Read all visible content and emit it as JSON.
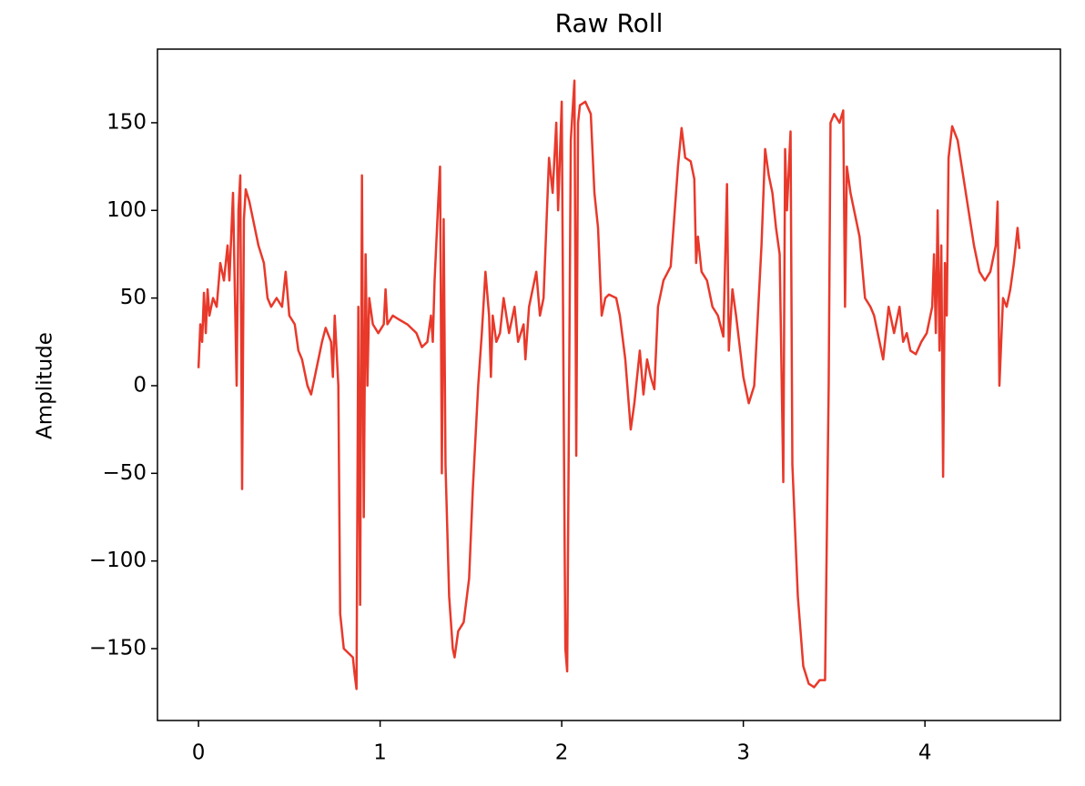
{
  "chart_data": {
    "type": "line",
    "title": "Raw Roll",
    "y_label": "Amplitude",
    "color": "#e8392b",
    "x": [
      0.0,
      0.01,
      0.02,
      0.03,
      0.04,
      0.05,
      0.06,
      0.08,
      0.1,
      0.12,
      0.14,
      0.16,
      0.17,
      0.19,
      0.2,
      0.21,
      0.22,
      0.23,
      0.24,
      0.25,
      0.26,
      0.28,
      0.3,
      0.33,
      0.36,
      0.38,
      0.4,
      0.43,
      0.46,
      0.48,
      0.5,
      0.53,
      0.55,
      0.57,
      0.6,
      0.62,
      0.64,
      0.66,
      0.68,
      0.7,
      0.73,
      0.74,
      0.75,
      0.77,
      0.78,
      0.8,
      0.83,
      0.85,
      0.86,
      0.87,
      0.88,
      0.89,
      0.9,
      0.91,
      0.92,
      0.93,
      0.94,
      0.96,
      0.99,
      1.02,
      1.03,
      1.04,
      1.07,
      1.1,
      1.15,
      1.2,
      1.23,
      1.26,
      1.28,
      1.29,
      1.3,
      1.32,
      1.33,
      1.34,
      1.35,
      1.36,
      1.38,
      1.4,
      1.41,
      1.43,
      1.46,
      1.49,
      1.51,
      1.54,
      1.56,
      1.58,
      1.6,
      1.61,
      1.62,
      1.64,
      1.66,
      1.68,
      1.71,
      1.74,
      1.76,
      1.79,
      1.8,
      1.82,
      1.86,
      1.88,
      1.9,
      1.93,
      1.95,
      1.97,
      1.98,
      2.0,
      2.01,
      2.02,
      2.03,
      2.05,
      2.07,
      2.08,
      2.09,
      2.1,
      2.13,
      2.16,
      2.18,
      2.2,
      2.22,
      2.24,
      2.26,
      2.3,
      2.32,
      2.35,
      2.38,
      2.4,
      2.43,
      2.45,
      2.47,
      2.49,
      2.51,
      2.53,
      2.56,
      2.6,
      2.64,
      2.66,
      2.68,
      2.71,
      2.73,
      2.74,
      2.75,
      2.77,
      2.8,
      2.83,
      2.86,
      2.89,
      2.91,
      2.92,
      2.94,
      2.96,
      3.0,
      3.03,
      3.06,
      3.08,
      3.1,
      3.12,
      3.14,
      3.16,
      3.18,
      3.2,
      3.22,
      3.23,
      3.24,
      3.26,
      3.27,
      3.3,
      3.33,
      3.36,
      3.39,
      3.42,
      3.45,
      3.47,
      3.48,
      3.5,
      3.53,
      3.55,
      3.56,
      3.57,
      3.59,
      3.61,
      3.64,
      3.67,
      3.7,
      3.72,
      3.75,
      3.77,
      3.8,
      3.83,
      3.86,
      3.88,
      3.9,
      3.92,
      3.95,
      3.98,
      4.01,
      4.04,
      4.05,
      4.06,
      4.07,
      4.08,
      4.09,
      4.1,
      4.11,
      4.12,
      4.13,
      4.15,
      4.18,
      4.21,
      4.24,
      4.27,
      4.3,
      4.33,
      4.36,
      4.39,
      4.4,
      4.41,
      4.43,
      4.45,
      4.47,
      4.49,
      4.51,
      4.52
    ],
    "values": [
      10,
      35,
      25,
      53,
      30,
      55,
      40,
      50,
      45,
      70,
      60,
      80,
      60,
      110,
      55,
      0,
      100,
      120,
      -59,
      95,
      112,
      105,
      95,
      80,
      70,
      50,
      45,
      50,
      45,
      65,
      40,
      35,
      20,
      15,
      0,
      -5,
      5,
      15,
      25,
      33,
      25,
      5,
      40,
      0,
      -130,
      -150,
      -153,
      -155,
      -165,
      -173,
      45,
      -125,
      120,
      -75,
      75,
      0,
      50,
      35,
      30,
      35,
      55,
      35,
      40,
      38,
      35,
      30,
      22,
      25,
      40,
      25,
      60,
      105,
      125,
      -50,
      95,
      -45,
      -120,
      -150,
      -155,
      -140,
      -135,
      -110,
      -60,
      0,
      30,
      65,
      40,
      5,
      40,
      25,
      30,
      50,
      30,
      45,
      25,
      35,
      15,
      45,
      65,
      40,
      50,
      130,
      110,
      150,
      100,
      162,
      0,
      -150,
      -163,
      140,
      174,
      -40,
      150,
      160,
      162,
      155,
      110,
      90,
      40,
      50,
      52,
      50,
      40,
      15,
      -25,
      -10,
      20,
      -5,
      15,
      5,
      -2,
      45,
      60,
      68,
      125,
      147,
      130,
      128,
      118,
      70,
      85,
      65,
      60,
      45,
      40,
      28,
      115,
      20,
      55,
      40,
      5,
      -10,
      0,
      40,
      80,
      135,
      120,
      110,
      90,
      75,
      -55,
      135,
      100,
      145,
      -45,
      -120,
      -160,
      -170,
      -172,
      -168,
      -168,
      0,
      150,
      155,
      150,
      157,
      45,
      125,
      110,
      100,
      85,
      50,
      45,
      40,
      25,
      15,
      45,
      30,
      45,
      25,
      30,
      20,
      18,
      25,
      30,
      45,
      75,
      30,
      100,
      20,
      80,
      -52,
      70,
      40,
      130,
      148,
      140,
      120,
      100,
      80,
      65,
      60,
      65,
      80,
      105,
      0,
      50,
      45,
      55,
      70,
      90,
      78
    ],
    "xlim": [
      -0.226,
      4.746
    ],
    "ylim": [
      -191,
      192
    ],
    "xticks": [
      0,
      1,
      2,
      3,
      4
    ],
    "yticks": [
      {
        "value": -150,
        "label": "−150"
      },
      {
        "value": -100,
        "label": "−100"
      },
      {
        "value": -50,
        "label": "−50"
      },
      0,
      50,
      100,
      150
    ]
  }
}
